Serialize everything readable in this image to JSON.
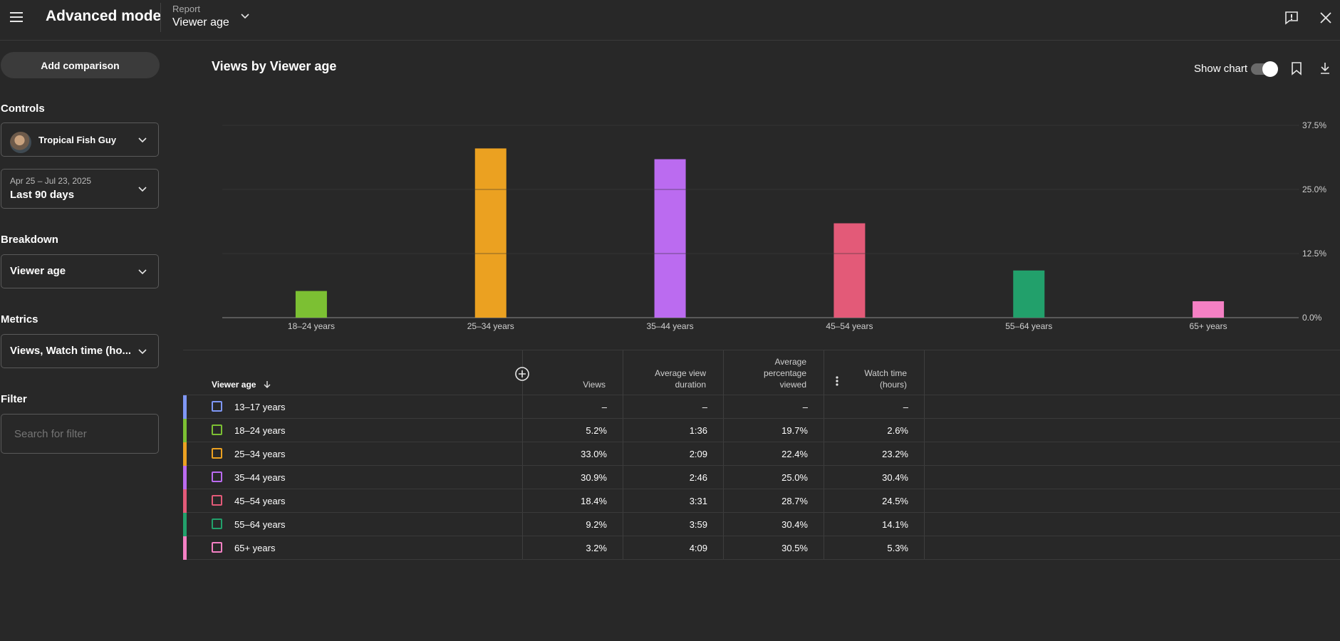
{
  "header": {
    "title": "Advanced mode",
    "report_label": "Report",
    "report_value": "Viewer age"
  },
  "sidebar": {
    "add_comparison": "Add comparison",
    "controls_label": "Controls",
    "channel_name": "Tropical Fish Guy",
    "date_range": "Apr 25 – Jul 23, 2025",
    "date_preset": "Last 90 days",
    "breakdown_label": "Breakdown",
    "breakdown_value": "Viewer age",
    "metrics_label": "Metrics",
    "metrics_value": "Views, Watch time (ho...",
    "filter_label": "Filter",
    "filter_placeholder": "Search for filter"
  },
  "chart_panel": {
    "title": "Views by Viewer age",
    "show_chart_label": "Show chart"
  },
  "chart_data": {
    "type": "bar",
    "categories": [
      "18–24 years",
      "25–34 years",
      "35–44 years",
      "45–54 years",
      "55–64 years",
      "65+ years"
    ],
    "values": [
      5.2,
      33.0,
      30.9,
      18.4,
      9.2,
      3.2
    ],
    "colors": [
      "#7cc033",
      "#eba121",
      "#bb6bf0",
      "#e35a78",
      "#22a06b",
      "#f480c4"
    ],
    "ylim": [
      0,
      37.5
    ],
    "yticks": [
      "0.0%",
      "12.5%",
      "25.0%",
      "37.5%"
    ],
    "title": "Views by Viewer age",
    "grid": true
  },
  "table": {
    "columns": {
      "name": "Viewer age",
      "views": "Views",
      "avg_view_duration": [
        "Average view",
        "duration"
      ],
      "avg_pct_viewed": [
        "Average",
        "percentage",
        "viewed"
      ],
      "watch_time": [
        "Watch time",
        "(hours)"
      ]
    },
    "rows": [
      {
        "label": "13–17 years",
        "color": "#7f97f5",
        "views": "–",
        "duration": "–",
        "pct": "–",
        "watch": "–"
      },
      {
        "label": "18–24 years",
        "color": "#7cc033",
        "views": "5.2%",
        "duration": "1:36",
        "pct": "19.7%",
        "watch": "2.6%"
      },
      {
        "label": "25–34 years",
        "color": "#eba121",
        "views": "33.0%",
        "duration": "2:09",
        "pct": "22.4%",
        "watch": "23.2%"
      },
      {
        "label": "35–44 years",
        "color": "#bb6bf0",
        "views": "30.9%",
        "duration": "2:46",
        "pct": "25.0%",
        "watch": "30.4%"
      },
      {
        "label": "45–54 years",
        "color": "#e35a78",
        "views": "18.4%",
        "duration": "3:31",
        "pct": "28.7%",
        "watch": "24.5%"
      },
      {
        "label": "55–64 years",
        "color": "#22a06b",
        "views": "9.2%",
        "duration": "3:59",
        "pct": "30.4%",
        "watch": "14.1%"
      },
      {
        "label": "65+ years",
        "color": "#f480c4",
        "views": "3.2%",
        "duration": "4:09",
        "pct": "30.5%",
        "watch": "5.3%"
      }
    ]
  }
}
